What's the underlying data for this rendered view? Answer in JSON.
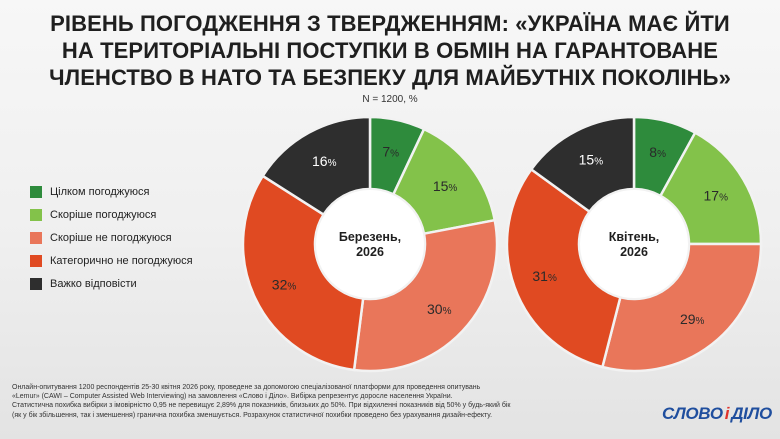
{
  "header": {
    "title_lines": [
      "РІВЕНЬ ПОГОДЖЕННЯ З ТВЕРДЖЕННЯМ: «УКРАЇНА МАЄ ЙТИ",
      "НА ТЕРИТОРІАЛЬНІ ПОСТУПКИ В ОБМІН НА ГАРАНТОВАНЕ",
      "ЧЛЕНСТВО В НАТО ТА БЕЗПЕКУ ДЛЯ МАЙБУТНІХ ПОКОЛІНЬ»"
    ],
    "subtitle": "N = 1200, %"
  },
  "chart_data": {
    "type": "pie",
    "subtype": "donut",
    "unit": "%",
    "categories": [
      "Цілком погоджуюся",
      "Скоріше погоджуюся",
      "Скоріше не погоджуюся",
      "Категорично не погоджуюся",
      "Важко відповісти"
    ],
    "colors": [
      "#2e8b3c",
      "#83c24a",
      "#e9765a",
      "#e04a22",
      "#2e2e2e"
    ],
    "legend_position": "left",
    "series": [
      {
        "name": "Березень, 2026",
        "values": [
          7,
          15,
          30,
          32,
          16
        ]
      },
      {
        "name": "Квітень, 2026",
        "values": [
          8,
          17,
          29,
          31,
          15
        ]
      }
    ]
  },
  "footer": {
    "lines": [
      "Онлайн-опитування 1200 респондентів 25-30 квітня 2026 року, проведене за допомогою спеціалізованої платформи для проведення опитувань",
      "«Lemur» (CAWI – Computer Assisted Web Interviewing) на замовлення «Слово і Діло». Вибірка репрезентує доросле населення України.",
      "Статистична похибка вибірки з імовірністю 0,95 не перевищує 2,89% для показників, близьких до 50%. При відхиленні показників від 50% у будь-який бік",
      "(як у бік збільшення, так і зменшення) гранична похибка зменшується. Розрахунок статистичної похибки проведено без урахування дизайн-ефекту."
    ]
  },
  "logo": {
    "word1": "СЛОВО",
    "amp": "і",
    "word2": "ДІЛО"
  }
}
